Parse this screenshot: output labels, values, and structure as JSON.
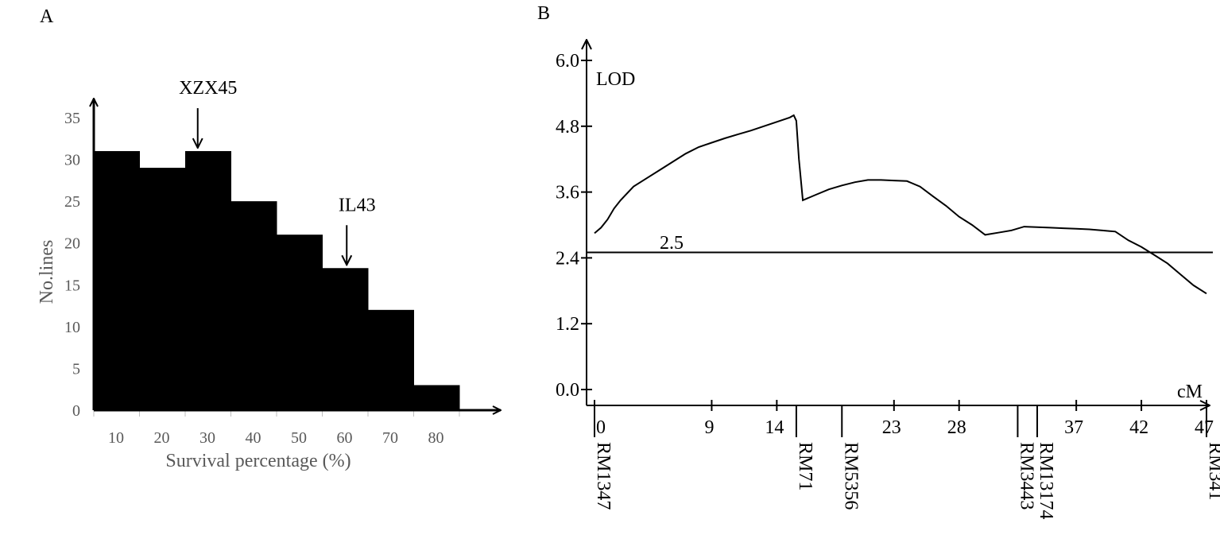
{
  "chart_data": [
    {
      "panel_label": "A",
      "type": "bar",
      "title": "",
      "xlabel": "Survival percentage (%)",
      "ylabel": "No.lines",
      "categories": [
        "10",
        "20",
        "30",
        "40",
        "50",
        "60",
        "70",
        "80"
      ],
      "values": [
        31,
        29,
        31,
        25,
        21,
        17,
        12,
        3
      ],
      "ylim": [
        0,
        35
      ],
      "yticks": [
        "0",
        "5",
        "10",
        "15",
        "20",
        "25",
        "30",
        "35"
      ],
      "bar_color": "#000000",
      "annotations": [
        {
          "text": "XZX45",
          "category": "30"
        },
        {
          "text": "IL43",
          "category": "60"
        }
      ]
    },
    {
      "panel_label": "B",
      "type": "line",
      "title": "",
      "ylabel": "LOD",
      "xunit": "cM",
      "ylim": [
        0,
        6
      ],
      "yticks": [
        "0.0",
        "1.2",
        "2.4",
        "3.6",
        "4.8",
        "6.0"
      ],
      "xticks": [
        "0",
        "9",
        "14",
        "23",
        "28",
        "37",
        "42",
        "47"
      ],
      "threshold": {
        "value": 2.5,
        "label": "2.5"
      },
      "markers": [
        "RM1347",
        "RM71",
        "RM5356",
        "RM3443",
        "RM13174",
        "RM341"
      ],
      "series": [
        {
          "x": [
            0,
            0.5,
            1,
            1.5,
            2,
            3,
            4,
            5,
            6,
            7,
            8,
            9,
            10,
            11,
            12,
            13,
            14,
            15,
            15.3,
            15.5,
            15.7,
            16,
            17,
            18,
            19,
            20,
            21,
            22,
            23,
            24,
            25,
            26,
            27,
            28,
            29,
            30,
            31,
            32,
            33,
            34,
            35,
            36,
            37,
            38,
            39,
            40,
            41,
            42,
            43,
            44,
            45,
            46,
            47
          ],
          "y": [
            2.85,
            2.95,
            3.1,
            3.3,
            3.45,
            3.7,
            3.85,
            4.0,
            4.15,
            4.3,
            4.42,
            4.5,
            4.58,
            4.65,
            4.72,
            4.8,
            4.88,
            4.96,
            5.0,
            4.9,
            4.2,
            3.45,
            3.55,
            3.65,
            3.72,
            3.78,
            3.82,
            3.82,
            3.81,
            3.8,
            3.7,
            3.52,
            3.35,
            3.15,
            3.0,
            2.82,
            2.86,
            2.9,
            2.97,
            2.96,
            2.95,
            2.94,
            2.93,
            2.92,
            2.9,
            2.88,
            2.72,
            2.6,
            2.45,
            2.3,
            2.1,
            1.9,
            1.75
          ]
        }
      ]
    }
  ]
}
